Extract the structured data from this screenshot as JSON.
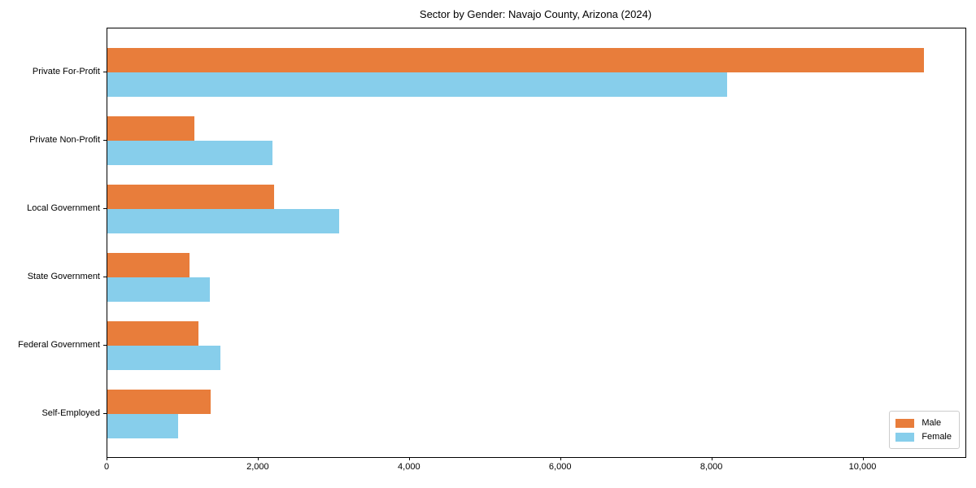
{
  "chart_data": {
    "type": "bar",
    "orientation": "horizontal",
    "title": "Sector by Gender: Navajo County, Arizona (2024)",
    "categories": [
      "Private For-Profit",
      "Private Non-Profit",
      "Local Government",
      "State Government",
      "Federal Government",
      "Self-Employed"
    ],
    "series": [
      {
        "name": "Male",
        "color": "#E87D3B",
        "values": [
          10800,
          1150,
          2200,
          1090,
          1200,
          1370
        ]
      },
      {
        "name": "Female",
        "color": "#87CEEB",
        "values": [
          8200,
          2180,
          3070,
          1360,
          1500,
          940
        ]
      }
    ],
    "xlabel": "",
    "ylabel": "",
    "xlim": [
      0,
      11350
    ],
    "x_ticks": [
      0,
      2000,
      4000,
      6000,
      8000,
      10000
    ],
    "x_tick_labels": [
      "0",
      "2,000",
      "4,000",
      "6,000",
      "8,000",
      "10,000"
    ],
    "legend_position": "lower right",
    "grid": false,
    "background_color": "#ffffff",
    "axis_color": "#000000"
  }
}
